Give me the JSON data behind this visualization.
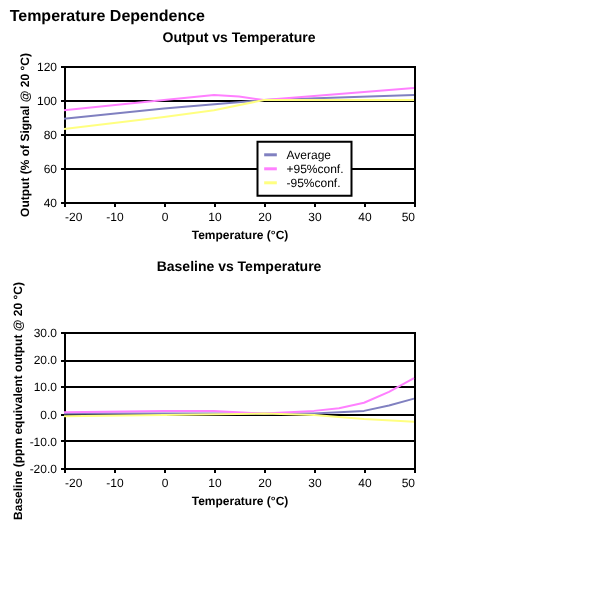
{
  "chart_data": [
    {
      "type": "line",
      "title": "Output vs Temperature",
      "annotations": [
        "Temperature Dependence"
      ],
      "xlabel": "Temperature (°C)",
      "ylabel": "Output (% of Signal @ 20 °C)",
      "xlim": [
        -20,
        50
      ],
      "xticks": [
        -20,
        -10,
        0,
        10,
        20,
        30,
        40,
        50
      ],
      "ylim": [
        40,
        120
      ],
      "yticks": [
        40,
        60,
        80,
        100,
        120
      ],
      "grid": "y",
      "legend": "bottom right",
      "series": [
        {
          "name": "Average",
          "color": "#8080c0",
          "x": [
            -20,
            0,
            20,
            50
          ],
          "values": [
            89,
            95,
            100,
            103
          ]
        },
        {
          "name": "+95%conf.",
          "color": "#ff80ff",
          "x": [
            -20,
            0,
            10,
            15,
            20,
            50
          ],
          "values": [
            94,
            100,
            103,
            102,
            100,
            107
          ]
        },
        {
          "name": "-95%conf.",
          "color": "#ffff80",
          "x": [
            -20,
            0,
            10,
            20,
            50
          ],
          "values": [
            83,
            90,
            94,
            100,
            100
          ]
        }
      ]
    },
    {
      "type": "line",
      "title": "Baseline  vs Temperature",
      "xlabel": "Temperature (°C)",
      "ylabel": "Baseline (ppm equivalent output @ 20 °C)",
      "xlim": [
        -20,
        50
      ],
      "xticks": [
        -20,
        -10,
        0,
        10,
        20,
        30,
        40,
        50
      ],
      "ylim": [
        -20,
        30
      ],
      "yticks": [
        {
          "value": -20,
          "label": "-20.0"
        },
        {
          "value": -10,
          "label": "-10.0"
        },
        {
          "value": 0,
          "label": "0.0"
        },
        {
          "value": 10,
          "label": "10.0"
        },
        {
          "value": 20,
          "label": "20.0"
        },
        {
          "value": 30,
          "label": "30.0"
        }
      ],
      "grid": "y",
      "legend": "top right",
      "series": [
        {
          "name": "Average",
          "color": "#8080c0",
          "x": [
            -20,
            0,
            20,
            30,
            40,
            45,
            50
          ],
          "values": [
            0,
            0,
            0,
            0,
            1,
            3,
            5.5
          ]
        },
        {
          "name": "+95%conf.",
          "color": "#ff80ff",
          "x": [
            -20,
            0,
            10,
            20,
            30,
            35,
            40,
            45,
            50
          ],
          "values": [
            0.5,
            1,
            1,
            0,
            1,
            2,
            4,
            8,
            13
          ]
        },
        {
          "name": "-95%conf.",
          "color": "#ffff80",
          "x": [
            -20,
            0,
            20,
            30,
            40,
            50
          ],
          "values": [
            -1,
            -0.5,
            0,
            -0.5,
            -2,
            -3
          ]
        }
      ]
    }
  ]
}
